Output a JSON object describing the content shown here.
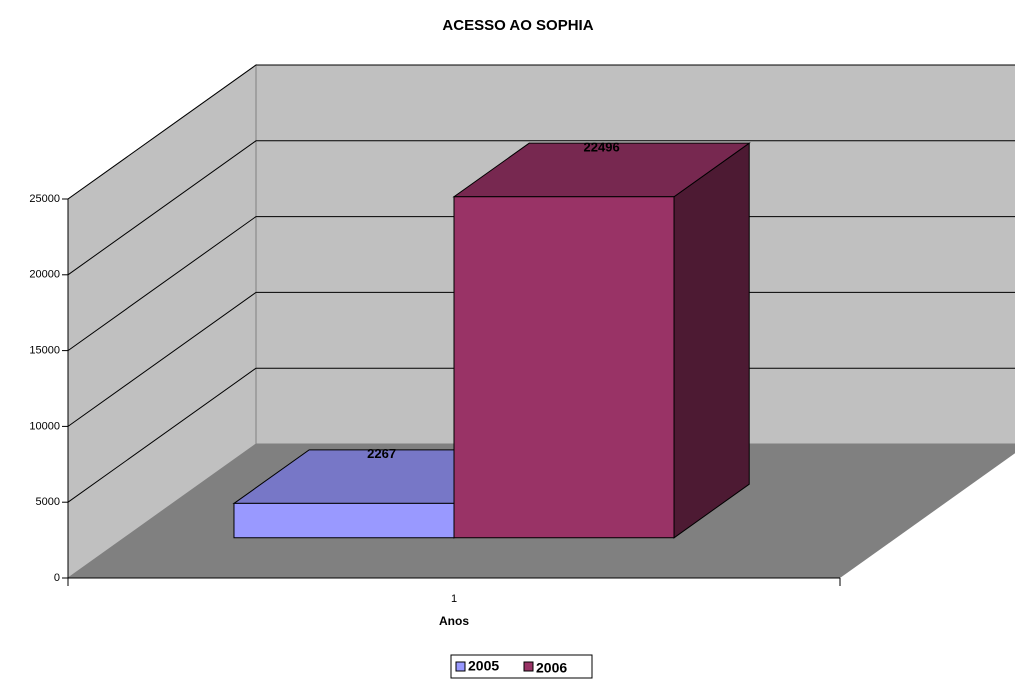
{
  "chart_data": {
    "type": "bar3d",
    "title": "ACESSO AO SOPHIA",
    "x_label": "Anos",
    "categories": [
      "1"
    ],
    "series": [
      {
        "name": "2005",
        "color": "#9999ff",
        "values": [
          2267
        ]
      },
      {
        "name": "2006",
        "color": "#993366",
        "values": [
          22496
        ]
      }
    ],
    "ylim": [
      0,
      25000
    ],
    "yticks": [
      0,
      5000,
      10000,
      15000,
      20000,
      25000
    ],
    "grid": true,
    "legend": "bottom"
  }
}
